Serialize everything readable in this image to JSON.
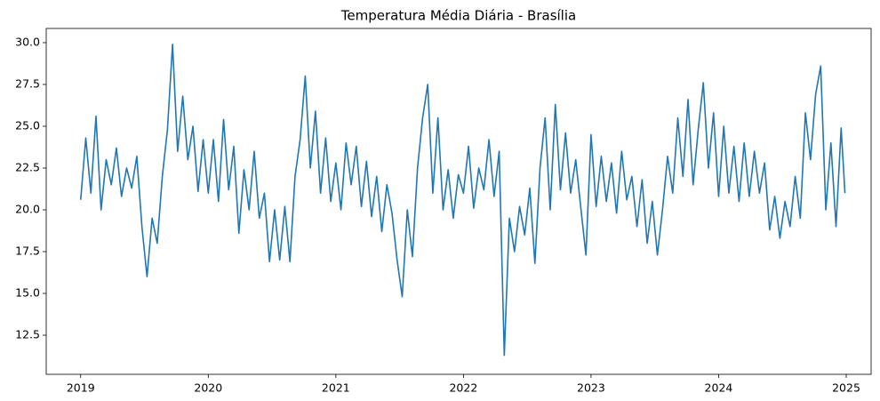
{
  "chart_data": {
    "type": "line",
    "title": "Temperatura Média Diária - Brasília",
    "x": [
      2019.0,
      2019.04,
      2019.08,
      2019.12,
      2019.16,
      2019.2,
      2019.24,
      2019.28,
      2019.32,
      2019.36,
      2019.4,
      2019.44,
      2019.48,
      2019.52,
      2019.56,
      2019.6,
      2019.64,
      2019.68,
      2019.72,
      2019.76,
      2019.8,
      2019.84,
      2019.88,
      2019.92,
      2019.96,
      2020.0,
      2020.04,
      2020.08,
      2020.12,
      2020.16,
      2020.2,
      2020.24,
      2020.28,
      2020.32,
      2020.36,
      2020.4,
      2020.44,
      2020.48,
      2020.52,
      2020.56,
      2020.6,
      2020.64,
      2020.68,
      2020.72,
      2020.76,
      2020.8,
      2020.84,
      2020.88,
      2020.92,
      2020.96,
      2021.0,
      2021.04,
      2021.08,
      2021.12,
      2021.16,
      2021.2,
      2021.24,
      2021.28,
      2021.32,
      2021.36,
      2021.4,
      2021.44,
      2021.48,
      2021.52,
      2021.56,
      2021.6,
      2021.64,
      2021.68,
      2021.72,
      2021.76,
      2021.8,
      2021.84,
      2021.88,
      2021.92,
      2021.96,
      2022.0,
      2022.04,
      2022.08,
      2022.12,
      2022.16,
      2022.2,
      2022.24,
      2022.28,
      2022.32,
      2022.36,
      2022.4,
      2022.44,
      2022.48,
      2022.52,
      2022.56,
      2022.6,
      2022.64,
      2022.68,
      2022.72,
      2022.76,
      2022.8,
      2022.84,
      2022.88,
      2022.92,
      2022.96,
      2023.0,
      2023.04,
      2023.08,
      2023.12,
      2023.16,
      2023.2,
      2023.24,
      2023.28,
      2023.32,
      2023.36,
      2023.4,
      2023.44,
      2023.48,
      2023.52,
      2023.56,
      2023.6,
      2023.64,
      2023.68,
      2023.72,
      2023.76,
      2023.8,
      2023.84,
      2023.88,
      2023.92,
      2023.96,
      2024.0,
      2024.04,
      2024.08,
      2024.12,
      2024.16,
      2024.2,
      2024.24,
      2024.28,
      2024.32,
      2024.36,
      2024.4,
      2024.44,
      2024.48,
      2024.52,
      2024.56,
      2024.6,
      2024.64,
      2024.68,
      2024.72,
      2024.76,
      2024.8,
      2024.84,
      2024.88,
      2024.92,
      2024.96,
      2024.99
    ],
    "series": [
      {
        "color": "#1f77b4",
        "values": [
          20.6,
          24.3,
          21.0,
          25.6,
          20.0,
          23.0,
          21.5,
          23.7,
          20.8,
          22.5,
          21.3,
          23.2,
          19.0,
          16.0,
          19.5,
          18.0,
          22.0,
          24.8,
          29.9,
          23.5,
          26.8,
          23.0,
          25.0,
          21.1,
          24.2,
          21.0,
          24.2,
          20.5,
          25.4,
          21.2,
          23.8,
          18.6,
          22.4,
          20.0,
          23.5,
          19.5,
          21.0,
          16.9,
          20.0,
          17.0,
          20.2,
          16.9,
          22.0,
          24.2,
          28.0,
          22.5,
          25.9,
          21.0,
          24.3,
          20.5,
          22.8,
          20.0,
          24.0,
          21.5,
          23.8,
          20.2,
          22.9,
          19.6,
          22.0,
          18.7,
          21.5,
          19.8,
          17.0,
          14.8,
          20.0,
          17.2,
          22.5,
          25.5,
          27.5,
          21.0,
          25.5,
          20.0,
          22.4,
          19.5,
          22.1,
          21.0,
          23.8,
          20.1,
          22.5,
          21.2,
          24.2,
          20.8,
          23.5,
          11.3,
          19.5,
          17.5,
          20.2,
          18.5,
          21.3,
          16.8,
          22.5,
          25.5,
          20.0,
          26.3,
          21.2,
          24.6,
          21.0,
          23.0,
          20.1,
          17.3,
          24.5,
          20.2,
          23.2,
          20.5,
          22.8,
          19.8,
          23.5,
          20.6,
          22.0,
          19.0,
          21.8,
          18.0,
          20.5,
          17.3,
          20.0,
          23.2,
          21.0,
          25.5,
          22.0,
          26.6,
          21.5,
          24.8,
          27.6,
          22.5,
          25.8,
          20.8,
          25.0,
          21.0,
          23.8,
          20.5,
          24.0,
          20.8,
          23.5,
          21.0,
          22.8,
          18.8,
          20.8,
          18.3,
          20.5,
          19.0,
          22.0,
          19.5,
          25.8,
          23.0,
          26.9,
          28.6,
          20.0,
          24.0,
          19.0,
          24.9,
          21.0
        ]
      }
    ],
    "xlim": [
      2018.73,
      2025.195
    ],
    "xticks": [
      2019,
      2020,
      2021,
      2022,
      2023,
      2024,
      2025
    ],
    "ylim": [
      10.16,
      30.85
    ],
    "yticks": [
      {
        "value": 12.5,
        "label": "12.5"
      },
      {
        "value": 15,
        "label": "15.0"
      },
      {
        "value": 17.5,
        "label": "17.5"
      },
      {
        "value": 20,
        "label": "20.0"
      },
      {
        "value": 22.5,
        "label": "22.5"
      },
      {
        "value": 25,
        "label": "25.0"
      },
      {
        "value": 27.5,
        "label": "27.5"
      },
      {
        "value": 30,
        "label": "30.0"
      }
    ],
    "grid": false
  }
}
